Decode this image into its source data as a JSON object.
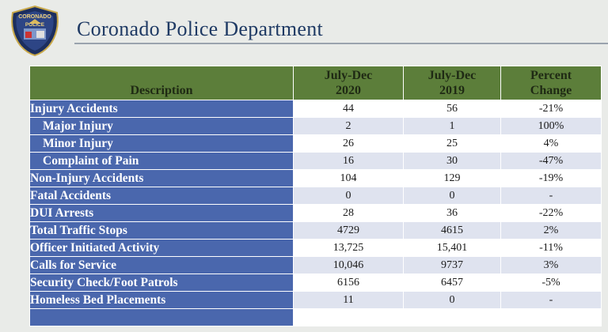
{
  "header": {
    "badge_text": "CORONADO POLICE",
    "title": "Coronado Police Department"
  },
  "table": {
    "columns": [
      "Description",
      "July-Dec 2020",
      "July-Dec 2019",
      "Percent Change"
    ],
    "col_lines": [
      [
        "",
        "Description"
      ],
      [
        "July-Dec",
        "2020"
      ],
      [
        "July-Dec",
        "2019"
      ],
      [
        "Percent",
        "Change"
      ]
    ],
    "rows": [
      {
        "label": "Injury Accidents",
        "sub": false,
        "v2020": "44",
        "v2019": "56",
        "change": "-21%"
      },
      {
        "label": "Major Injury",
        "sub": true,
        "v2020": "2",
        "v2019": "1",
        "change": "100%"
      },
      {
        "label": "Minor Injury",
        "sub": true,
        "v2020": "26",
        "v2019": "25",
        "change": "4%"
      },
      {
        "label": "Complaint of Pain",
        "sub": true,
        "v2020": "16",
        "v2019": "30",
        "change": "-47%"
      },
      {
        "label": "Non-Injury Accidents",
        "sub": false,
        "v2020": "104",
        "v2019": "129",
        "change": "-19%"
      },
      {
        "label": "Fatal Accidents",
        "sub": false,
        "v2020": "0",
        "v2019": "0",
        "change": "-"
      },
      {
        "label": "DUI Arrests",
        "sub": false,
        "v2020": "28",
        "v2019": "36",
        "change": "-22%"
      },
      {
        "label": "Total Traffic Stops",
        "sub": false,
        "v2020": "4729",
        "v2019": "4615",
        "change": "2%"
      },
      {
        "label": "Officer Initiated Activity",
        "sub": false,
        "v2020": "13,725",
        "v2019": "15,401",
        "change": "-11%"
      },
      {
        "label": "Calls for Service",
        "sub": false,
        "v2020": "10,046",
        "v2019": "9737",
        "change": "3%"
      },
      {
        "label": "Security Check/Foot Patrols",
        "sub": false,
        "v2020": "6156",
        "v2019": "6457",
        "change": "-5%"
      },
      {
        "label": "Homeless Bed Placements",
        "sub": false,
        "v2020": "11",
        "v2019": "0",
        "change": "-"
      },
      {
        "label": "",
        "sub": false,
        "v2020": "",
        "v2019": "",
        "change": ""
      }
    ]
  },
  "colors": {
    "header_green": "#5c7e3a",
    "label_blue": "#4a67ad",
    "row_alt": "#dfe3ef",
    "title_navy": "#1f3a64"
  }
}
